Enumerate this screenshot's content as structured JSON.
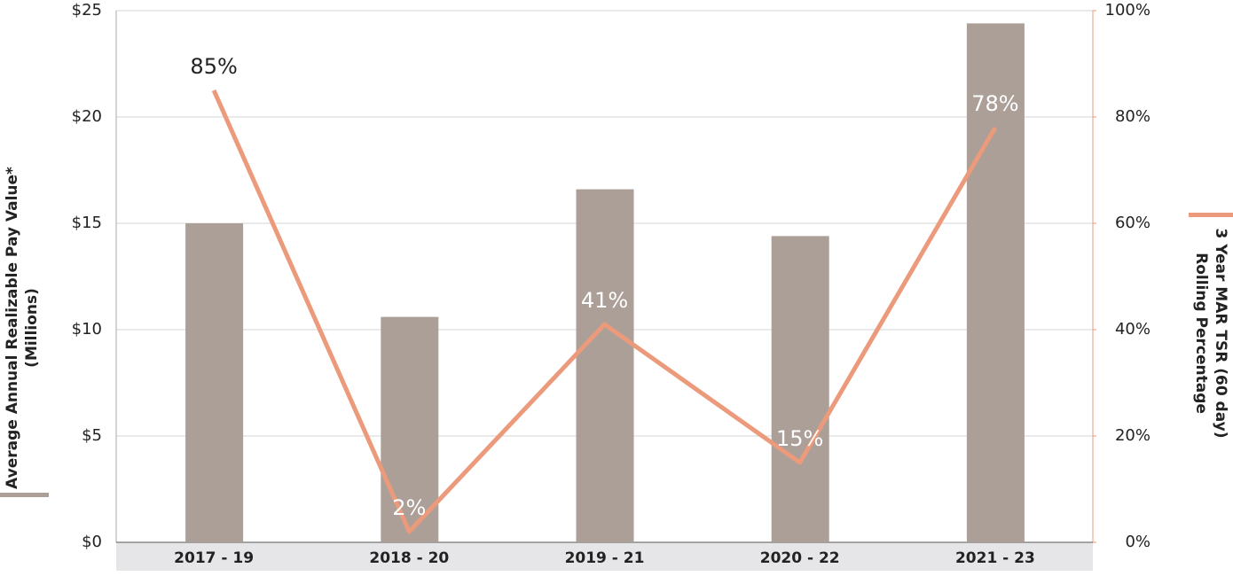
{
  "chart_data": {
    "type": "bar-line",
    "categories": [
      "2017 - 19",
      "2018 - 20",
      "2019 - 21",
      "2020 - 22",
      "2021 - 23"
    ],
    "series": [
      {
        "name": [
          "Average Annual Realizable Pay Value*",
          "(Millions)"
        ],
        "type": "bar",
        "color": "#ab9f98",
        "values": [
          15,
          10.6,
          16.6,
          14.4,
          24.4
        ]
      },
      {
        "name": [
          "3 Year MAR TSR (60 day)",
          "Rolling Percentage"
        ],
        "type": "line",
        "axis": "y2",
        "color": "#ec9a7c",
        "values": [
          85,
          2,
          41,
          15,
          78
        ],
        "value_labels": [
          "85%",
          "2%",
          "41%",
          "15%",
          "78%"
        ]
      }
    ],
    "ylim": [
      0,
      25
    ],
    "yticks": [
      {
        "value": 0,
        "label": "$0"
      },
      {
        "value": 5,
        "label": "$5"
      },
      {
        "value": 10,
        "label": "$10"
      },
      {
        "value": 15,
        "label": "$15"
      },
      {
        "value": 20,
        "label": "$20"
      },
      {
        "value": 25,
        "label": "$25"
      }
    ],
    "y2lim": [
      0,
      100
    ],
    "y2ticks": [
      {
        "value": 0,
        "label": "0%"
      },
      {
        "value": 20,
        "label": "20%"
      },
      {
        "value": 40,
        "label": "40%"
      },
      {
        "value": 60,
        "label": "60%"
      },
      {
        "value": 80,
        "label": "80%"
      },
      {
        "value": 100,
        "label": "100%"
      }
    ],
    "grid": true
  }
}
